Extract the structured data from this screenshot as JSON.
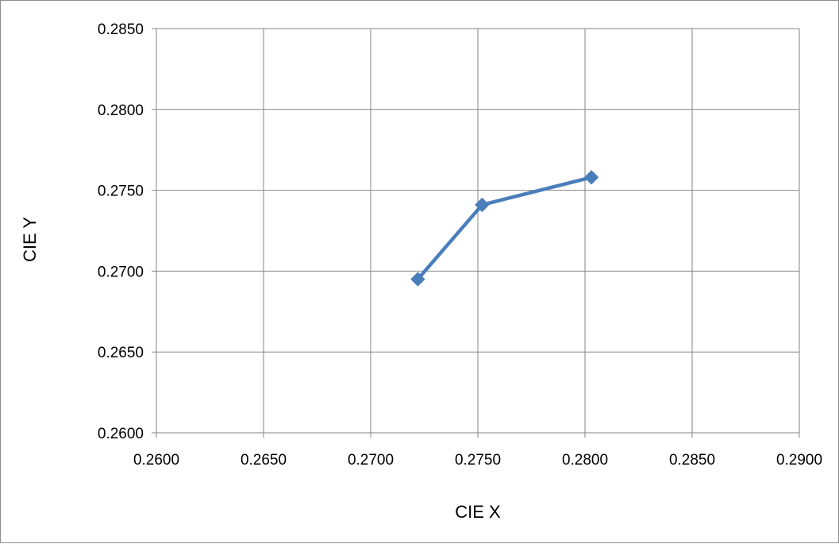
{
  "chart_data": {
    "type": "line",
    "title": "",
    "xlabel": "CIE  X",
    "ylabel": "CIE  Y",
    "xlim": [
      0.26,
      0.29
    ],
    "ylim": [
      0.26,
      0.285
    ],
    "xticks": [
      "0.2600",
      "0.2650",
      "0.2700",
      "0.2750",
      "0.2800",
      "0.2850",
      "0.2900"
    ],
    "yticks": [
      "0.2600",
      "0.2650",
      "0.2700",
      "0.2750",
      "0.2800",
      "0.2850"
    ],
    "xtick_values": [
      0.26,
      0.265,
      0.27,
      0.275,
      0.28,
      0.285,
      0.29
    ],
    "ytick_values": [
      0.26,
      0.265,
      0.27,
      0.275,
      0.28,
      0.285
    ],
    "grid": true,
    "legend": "none",
    "series": [
      {
        "color": "#4a7ebb",
        "marker": "diamond",
        "points": [
          {
            "x": 0.2722,
            "y": 0.2695
          },
          {
            "x": 0.2752,
            "y": 0.2741
          },
          {
            "x": 0.2803,
            "y": 0.2758
          }
        ]
      }
    ]
  }
}
